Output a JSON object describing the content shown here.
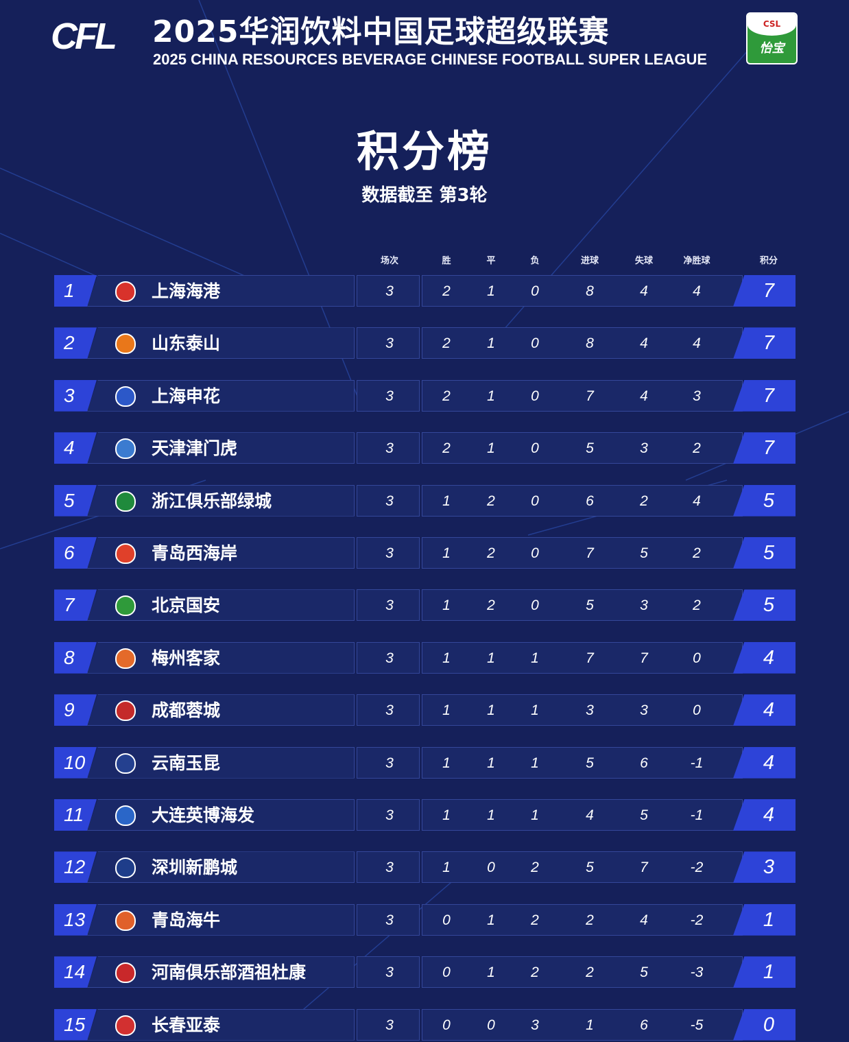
{
  "header": {
    "logo_text": "CFL",
    "title_cn": "2025华润饮料中国足球超级联赛",
    "title_en": "2025 CHINA RESOURCES BEVERAGE CHINESE FOOTBALL SUPER LEAGUE",
    "sponsor_logo": "CSL 怡宝"
  },
  "page_title": "积分榜",
  "subtitle": "数据截至 第3轮",
  "columns": [
    "场次",
    "胜",
    "平",
    "负",
    "进球",
    "失球",
    "净胜球",
    "积分"
  ],
  "colors": {
    "background": "#15205a",
    "accent": "#2d43d8",
    "row": "#1a2868"
  },
  "standings": [
    {
      "rank": "1",
      "team": "上海海港",
      "crest": "#d8322b",
      "p": "3",
      "w": "2",
      "d": "1",
      "l": "0",
      "gf": "8",
      "ga": "4",
      "gd": "4",
      "pts": "7"
    },
    {
      "rank": "2",
      "team": "山东泰山",
      "crest": "#e9771a",
      "p": "3",
      "w": "2",
      "d": "1",
      "l": "0",
      "gf": "8",
      "ga": "4",
      "gd": "4",
      "pts": "7"
    },
    {
      "rank": "3",
      "team": "上海申花",
      "crest": "#2c58c8",
      "p": "3",
      "w": "2",
      "d": "1",
      "l": "0",
      "gf": "7",
      "ga": "4",
      "gd": "3",
      "pts": "7"
    },
    {
      "rank": "4",
      "team": "天津津门虎",
      "crest": "#3b7bd0",
      "p": "3",
      "w": "2",
      "d": "1",
      "l": "0",
      "gf": "5",
      "ga": "3",
      "gd": "2",
      "pts": "7"
    },
    {
      "rank": "5",
      "team": "浙江俱乐部绿城",
      "crest": "#1f8a3c",
      "p": "3",
      "w": "1",
      "d": "2",
      "l": "0",
      "gf": "6",
      "ga": "2",
      "gd": "4",
      "pts": "5"
    },
    {
      "rank": "6",
      "team": "青岛西海岸",
      "crest": "#e0402a",
      "p": "3",
      "w": "1",
      "d": "2",
      "l": "0",
      "gf": "7",
      "ga": "5",
      "gd": "2",
      "pts": "5"
    },
    {
      "rank": "7",
      "team": "北京国安",
      "crest": "#2f9a3a",
      "p": "3",
      "w": "1",
      "d": "2",
      "l": "0",
      "gf": "5",
      "ga": "3",
      "gd": "2",
      "pts": "5"
    },
    {
      "rank": "8",
      "team": "梅州客家",
      "crest": "#e46a2a",
      "p": "3",
      "w": "1",
      "d": "1",
      "l": "1",
      "gf": "7",
      "ga": "7",
      "gd": "0",
      "pts": "4"
    },
    {
      "rank": "9",
      "team": "成都蓉城",
      "crest": "#c42a2a",
      "p": "3",
      "w": "1",
      "d": "1",
      "l": "1",
      "gf": "3",
      "ga": "3",
      "gd": "0",
      "pts": "4"
    },
    {
      "rank": "10",
      "team": "云南玉昆",
      "crest": "#24408f",
      "p": "3",
      "w": "1",
      "d": "1",
      "l": "1",
      "gf": "5",
      "ga": "6",
      "gd": "-1",
      "pts": "4"
    },
    {
      "rank": "11",
      "team": "大连英博海发",
      "crest": "#2a66c8",
      "p": "3",
      "w": "1",
      "d": "1",
      "l": "1",
      "gf": "4",
      "ga": "5",
      "gd": "-1",
      "pts": "4"
    },
    {
      "rank": "12",
      "team": "深圳新鹏城",
      "crest": "#1e3d8a",
      "p": "3",
      "w": "1",
      "d": "0",
      "l": "2",
      "gf": "5",
      "ga": "7",
      "gd": "-2",
      "pts": "3"
    },
    {
      "rank": "13",
      "team": "青岛海牛",
      "crest": "#e0602a",
      "p": "3",
      "w": "0",
      "d": "1",
      "l": "2",
      "gf": "2",
      "ga": "4",
      "gd": "-2",
      "pts": "1"
    },
    {
      "rank": "14",
      "team": "河南俱乐部酒祖杜康",
      "crest": "#c8282a",
      "p": "3",
      "w": "0",
      "d": "1",
      "l": "2",
      "gf": "2",
      "ga": "5",
      "gd": "-3",
      "pts": "1"
    },
    {
      "rank": "15",
      "team": "长春亚泰",
      "crest": "#d23030",
      "p": "3",
      "w": "0",
      "d": "0",
      "l": "3",
      "gf": "1",
      "ga": "6",
      "gd": "-5",
      "pts": "0"
    }
  ]
}
